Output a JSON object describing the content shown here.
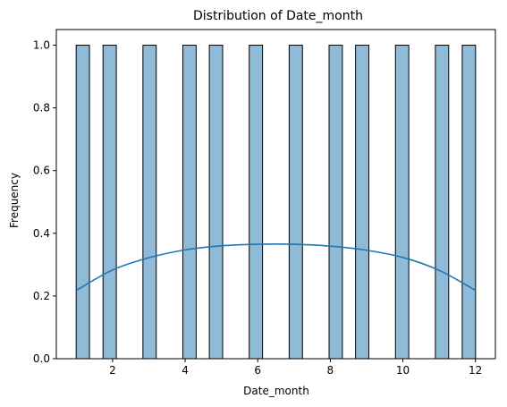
{
  "chart_data": {
    "type": "bar",
    "title": "Distribution of Date_month",
    "xlabel": "Date_month",
    "ylabel": "Frequency",
    "xlim": [
      0.45,
      12.55
    ],
    "ylim": [
      0,
      1.05
    ],
    "x_ticks": [
      2,
      4,
      6,
      8,
      10,
      12
    ],
    "y_ticks": [
      0.0,
      0.2,
      0.4,
      0.6,
      0.8,
      1.0
    ],
    "y_tick_labels": [
      "0.0",
      "0.2",
      "0.4",
      "0.6",
      "0.8",
      "1.0"
    ],
    "bin_width": 0.3667,
    "bars": [
      {
        "x_center": 1.18,
        "value": 1
      },
      {
        "x_center": 1.92,
        "value": 1
      },
      {
        "x_center": 3.02,
        "value": 1
      },
      {
        "x_center": 4.12,
        "value": 1
      },
      {
        "x_center": 4.85,
        "value": 1
      },
      {
        "x_center": 5.95,
        "value": 1
      },
      {
        "x_center": 7.05,
        "value": 1
      },
      {
        "x_center": 8.15,
        "value": 1
      },
      {
        "x_center": 8.88,
        "value": 1
      },
      {
        "x_center": 9.98,
        "value": 1
      },
      {
        "x_center": 11.08,
        "value": 1
      },
      {
        "x_center": 11.82,
        "value": 1
      }
    ],
    "kde": {
      "x": [
        1,
        2,
        3,
        4,
        5,
        6,
        7,
        8,
        9,
        10,
        11,
        12
      ],
      "y": [
        0.218,
        0.283,
        0.322,
        0.347,
        0.36,
        0.365,
        0.365,
        0.359,
        0.346,
        0.323,
        0.282,
        0.218
      ]
    },
    "bar_color": "#8fbbd9",
    "line_color": "#1f77b4",
    "grid": false
  }
}
